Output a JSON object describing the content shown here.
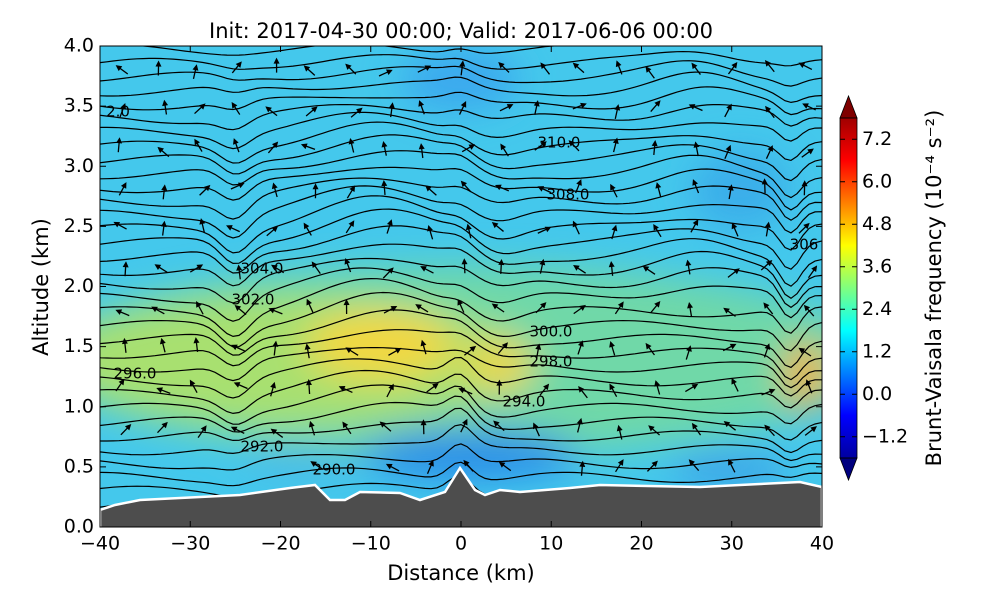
{
  "chart_data": {
    "type": "contour",
    "title": "Init: 2017-04-30 00:00; Valid: 2017-06-06 00:00",
    "x_label": "Distance (km)",
    "y_label": "Altitude (km)",
    "xlim": [
      -40,
      40
    ],
    "xticks": [
      {
        "value": -40,
        "label": "−40"
      },
      {
        "value": -30,
        "label": "−30"
      },
      {
        "value": -20,
        "label": "−20"
      },
      {
        "value": -10,
        "label": "−10"
      },
      0,
      10,
      20,
      30,
      40
    ],
    "ylim": [
      0,
      4
    ],
    "yticks": [
      {
        "value": 0,
        "label": "0.0"
      },
      0.5,
      {
        "value": 1,
        "label": "1.0"
      },
      1.5,
      {
        "value": 2,
        "label": "2.0"
      },
      2.5,
      {
        "value": 3,
        "label": "3.0"
      },
      3.5,
      {
        "value": 4,
        "label": "4.0"
      }
    ],
    "contour_labels": [
      "2.0",
      "310.0",
      "308.0",
      "306",
      "304.0",
      "302.0",
      "300.0",
      "298.0",
      "296.0",
      "294.0",
      "292.0",
      "290.0"
    ],
    "colorbar_label": "Brunt-Vaisala frequency (10⁻⁴ s⁻²)",
    "clim": [
      -1.8,
      7.8
    ],
    "colorbar_ticks": [
      {
        "value": -1.2,
        "label": "−1.2"
      },
      {
        "value": 0,
        "label": "0.0"
      },
      1.2,
      2.4,
      3.6,
      4.8,
      {
        "value": 6,
        "label": "6.0"
      },
      7.2
    ]
  }
}
